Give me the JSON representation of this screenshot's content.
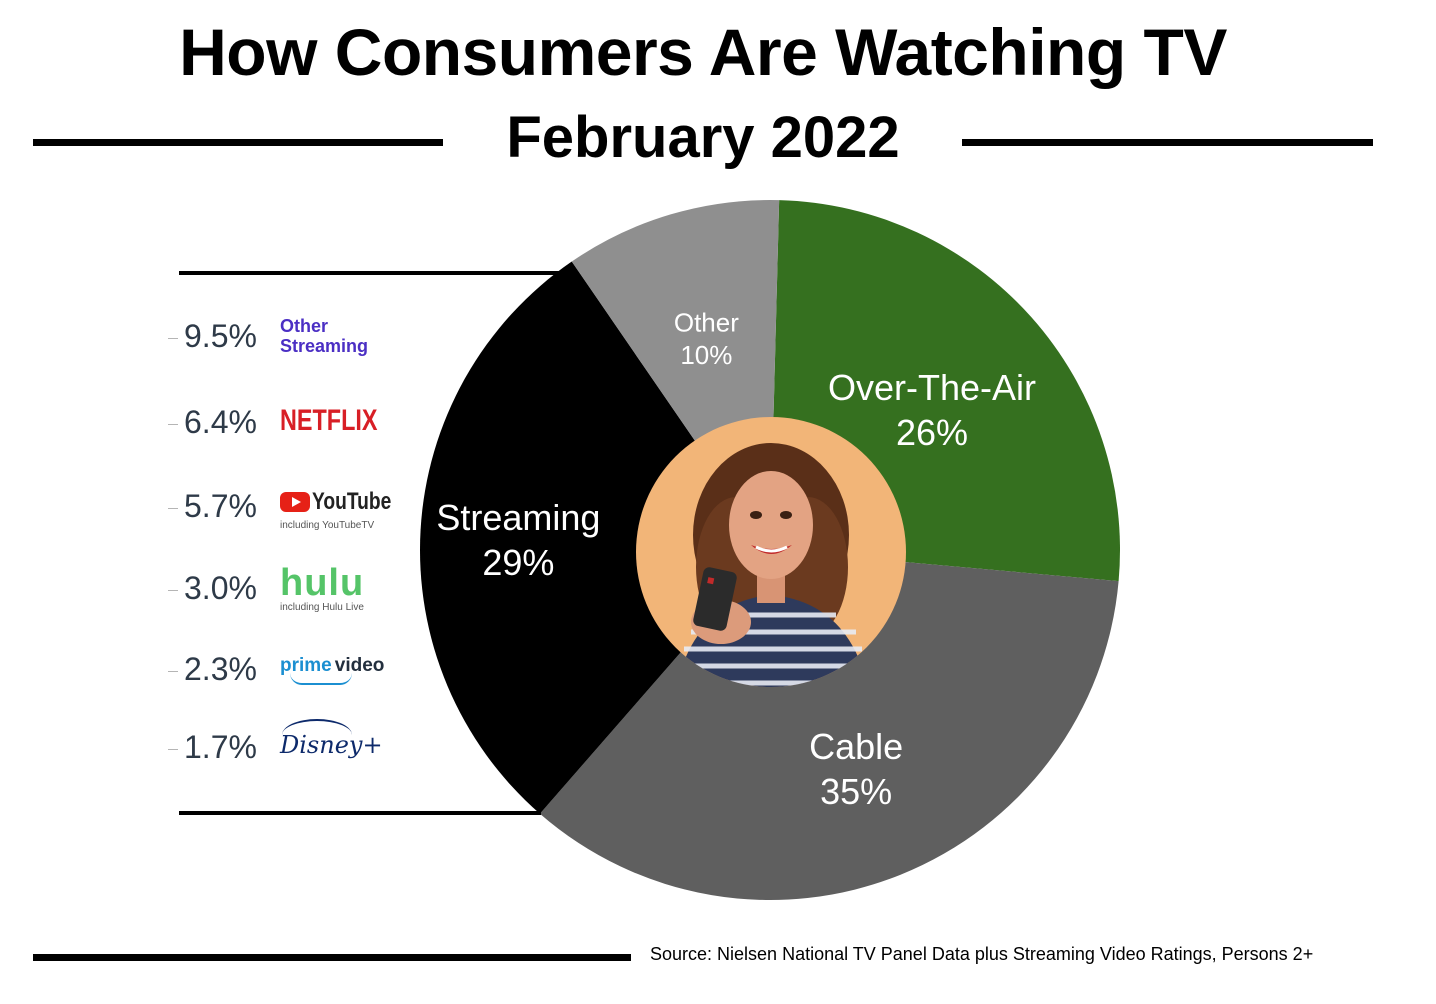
{
  "header": {
    "title": "How Consumers Are Watching TV",
    "subtitle": "February 2022"
  },
  "chart_data": {
    "type": "pie",
    "title": "How Consumers Are Watching TV",
    "subtitle": "February 2022",
    "slices": [
      {
        "label": "Over-The-Air",
        "value": 26,
        "value_label": "26%",
        "color": "#35701f"
      },
      {
        "label": "Cable",
        "value": 35,
        "value_label": "35%",
        "color": "#5f5f5f"
      },
      {
        "label": "Streaming",
        "value": 29,
        "value_label": "29%",
        "color": "#000000"
      },
      {
        "label": "Other",
        "value": 10,
        "value_label": "10%",
        "color": "#8f8f8f"
      }
    ],
    "streaming_breakdown": [
      {
        "service": "Other Streaming",
        "value": 9.5,
        "value_label": "9.5%",
        "color": "#4b2fc4"
      },
      {
        "service": "NETFLIX",
        "value": 6.4,
        "value_label": "6.4%",
        "color": "#d81f26"
      },
      {
        "service": "YouTube",
        "note": "including YouTubeTV",
        "value": 5.7,
        "value_label": "5.7%",
        "color": "#e62117"
      },
      {
        "service": "hulu",
        "note": "including Hulu Live",
        "value": 3.0,
        "value_label": "3.0%",
        "color": "#55c468"
      },
      {
        "service": "prime video",
        "value": 2.3,
        "value_label": "2.3%",
        "color": "#1b8fd1"
      },
      {
        "service": "Disney+",
        "value": 1.7,
        "value_label": "1.7%",
        "color": "#0d2a6b"
      }
    ]
  },
  "photo": {
    "icon": "woman-with-remote-photo",
    "background": "#f2b578"
  },
  "brands": {
    "other_streaming": "Other Streaming",
    "netflix": "NETFLIX",
    "youtube": "YouTube",
    "youtube_note": "including YouTubeTV",
    "hulu": "hulu",
    "hulu_note": "including Hulu Live",
    "prime": "prime",
    "prime_video": "video",
    "disney": "Disney+"
  },
  "footer": {
    "source": "Source: Nielsen National TV Panel Data plus Streaming Video Ratings, Persons 2+"
  }
}
